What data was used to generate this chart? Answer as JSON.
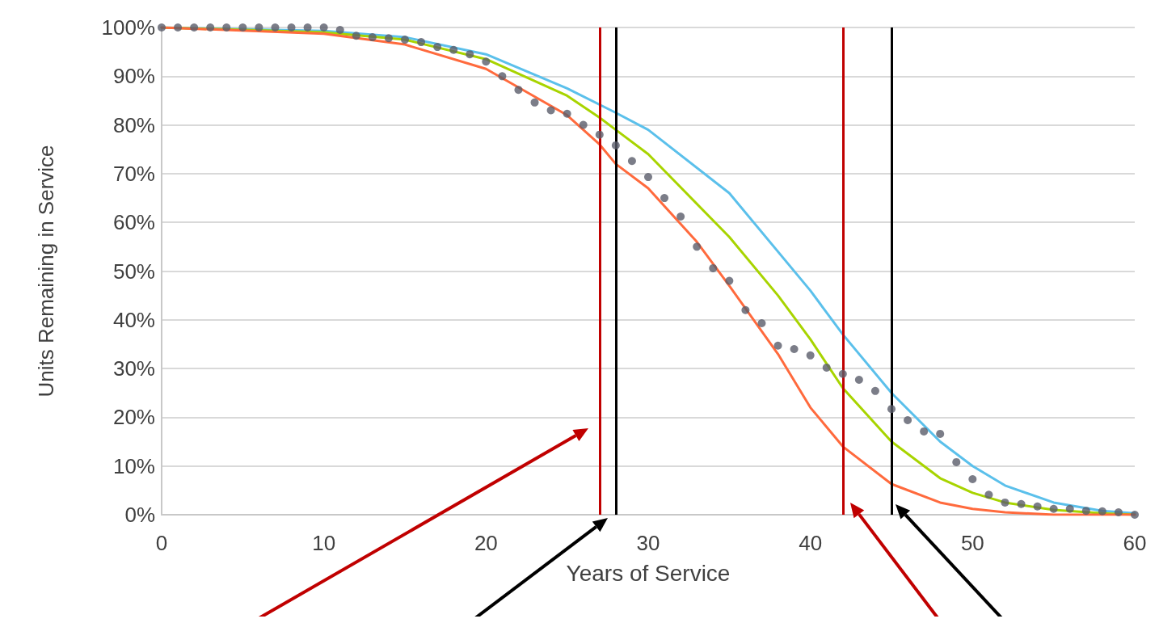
{
  "chart_data": {
    "type": "line",
    "xlabel": "Years of Service",
    "ylabel": "Units Remaining in Service",
    "xlim": [
      0,
      60
    ],
    "xticks": [
      0,
      10,
      20,
      30,
      40,
      50,
      60
    ],
    "ylim": [
      0,
      100
    ],
    "yticks": [
      {
        "value": 0,
        "label": "0%"
      },
      {
        "value": 10,
        "label": "10%"
      },
      {
        "value": 20,
        "label": "20%"
      },
      {
        "value": 30,
        "label": "30%"
      },
      {
        "value": 40,
        "label": "40%"
      },
      {
        "value": 50,
        "label": "50%"
      },
      {
        "value": 60,
        "label": "60%"
      },
      {
        "value": 70,
        "label": "70%"
      },
      {
        "value": 80,
        "label": "80%"
      },
      {
        "value": 90,
        "label": "90%"
      },
      {
        "value": 100,
        "label": "100%"
      }
    ],
    "grid": "y",
    "marker": "none",
    "series": [
      {
        "color": "#5bc0eb",
        "x": [
          0,
          10,
          15,
          20,
          25,
          28,
          30,
          35,
          40,
          42,
          45,
          48,
          50,
          52,
          55,
          58,
          60
        ],
        "values": [
          100,
          99.3,
          98,
          94.5,
          87.5,
          82.5,
          79,
          66,
          46,
          37,
          25,
          15,
          10,
          6,
          2.5,
          0.8,
          0.3
        ]
      },
      {
        "color": "#a8d400",
        "x": [
          0,
          10,
          15,
          20,
          25,
          27,
          28,
          30,
          35,
          38,
          40,
          42,
          45,
          48,
          50,
          52,
          55,
          58,
          60
        ],
        "values": [
          100,
          99,
          97.5,
          93.5,
          86,
          81.5,
          79,
          74,
          57,
          45,
          36,
          26,
          15,
          7.5,
          4.5,
          2.5,
          1,
          0.3,
          0
        ]
      },
      {
        "color": "#ff6a3d",
        "x": [
          0,
          10,
          15,
          20,
          25,
          27,
          28,
          30,
          33,
          35,
          38,
          40,
          42,
          45,
          48,
          50,
          52,
          55,
          60
        ],
        "values": [
          100,
          98.7,
          96.5,
          91.5,
          82,
          76,
          72,
          67,
          56,
          47,
          33,
          22,
          14,
          6.3,
          2.5,
          1.2,
          0.5,
          0,
          0
        ]
      },
      {
        "type": "scatter",
        "marker": "circle",
        "color": "#5a5d6a",
        "x": [
          0,
          1,
          2,
          3,
          4,
          5,
          6,
          7,
          8,
          9,
          10,
          11,
          12,
          13,
          14,
          15,
          16,
          17,
          18,
          19,
          20,
          21,
          22,
          23,
          24,
          25,
          26,
          27,
          28,
          29,
          30,
          31,
          32,
          33,
          34,
          35,
          36,
          37,
          38,
          39,
          40,
          41,
          42,
          43,
          44,
          45,
          46,
          47,
          48,
          49,
          50,
          51,
          52,
          53,
          54,
          55,
          56,
          57,
          58,
          59,
          60
        ],
        "values": [
          100,
          100,
          100,
          100,
          100,
          100,
          100,
          100,
          100,
          100,
          100,
          99.5,
          98.3,
          98,
          97.8,
          97.5,
          97,
          96,
          95.4,
          94.5,
          93,
          90,
          87.2,
          84.6,
          83,
          82.3,
          80,
          78,
          75.8,
          72.6,
          69.3,
          65,
          61.2,
          55,
          50.6,
          48,
          42,
          39.3,
          34.7,
          34,
          32.7,
          30.2,
          28.9,
          27.7,
          25.4,
          21.7,
          19.4,
          17.1,
          16.6,
          10.8,
          7.3,
          4.1,
          2.5,
          2.2,
          1.7,
          1.2,
          1.2,
          0.8,
          0.7,
          0.5,
          0
        ]
      }
    ],
    "ref_lines": [
      {
        "axis": "x",
        "value": 27,
        "color": "#c00000"
      },
      {
        "axis": "x",
        "value": 28,
        "color": "#000000"
      },
      {
        "axis": "x",
        "value": 42,
        "color": "#c00000"
      },
      {
        "axis": "x",
        "value": 45,
        "color": "#000000"
      }
    ]
  }
}
